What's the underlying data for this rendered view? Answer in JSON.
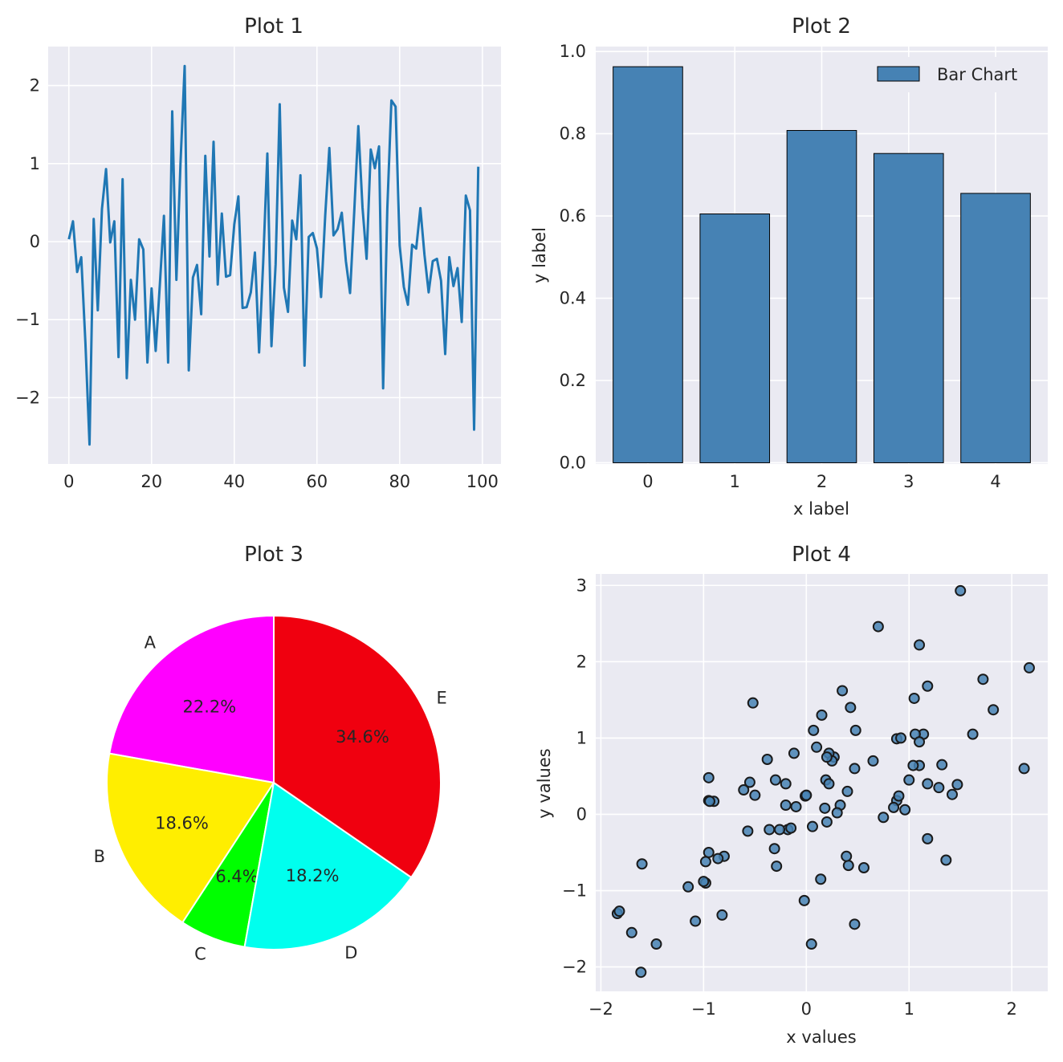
{
  "chart_data": [
    {
      "type": "line",
      "title": "Plot 1",
      "xlabel": "",
      "ylabel": "",
      "xlim": [
        -5,
        104.5
      ],
      "ylim": [
        -2.85,
        2.5
      ],
      "xticks": [
        0,
        20,
        40,
        60,
        80,
        100
      ],
      "yticks": [
        -2,
        -1,
        0,
        1,
        2
      ],
      "grid": true,
      "color": "#1f77b4",
      "series": [
        {
          "x": [
            0,
            1,
            2,
            3,
            4,
            5,
            6,
            7,
            8,
            9,
            10,
            11,
            12,
            13,
            14,
            15,
            16,
            17,
            18,
            19,
            20,
            21,
            22,
            23,
            24,
            25,
            26,
            27,
            28,
            29,
            30,
            31,
            32,
            33,
            34,
            35,
            36,
            37,
            38,
            39,
            40,
            41,
            42,
            43,
            44,
            45,
            46,
            47,
            48,
            49,
            50,
            51,
            52,
            53,
            54,
            55,
            56,
            57,
            58,
            59,
            60,
            61,
            62,
            63,
            64,
            65,
            66,
            67,
            68,
            69,
            70,
            71,
            72,
            73,
            74,
            75,
            76,
            77,
            78,
            79,
            80,
            81,
            82,
            83,
            84,
            85,
            86,
            87,
            88,
            89,
            90,
            91,
            92,
            93,
            94,
            95,
            96,
            97,
            98,
            99
          ],
          "values": [
            0.03,
            0.26,
            -0.39,
            -0.2,
            -1.3,
            -2.6,
            0.29,
            -0.88,
            0.42,
            0.93,
            -0.01,
            0.26,
            -1.48,
            0.8,
            -1.75,
            -0.49,
            -1.0,
            0.03,
            -0.1,
            -1.55,
            -0.6,
            -1.4,
            -0.55,
            0.33,
            -1.55,
            1.67,
            -0.49,
            1.0,
            2.25,
            -1.65,
            -0.46,
            -0.3,
            -0.93,
            1.1,
            -0.19,
            1.28,
            -0.55,
            0.36,
            -0.45,
            -0.43,
            0.22,
            0.58,
            -0.85,
            -0.84,
            -0.65,
            -0.14,
            -1.42,
            -0.27,
            1.13,
            -1.34,
            -0.29,
            1.76,
            -0.59,
            -0.9,
            0.27,
            0.03,
            0.85,
            -1.59,
            0.06,
            0.11,
            -0.09,
            -0.71,
            0.34,
            1.2,
            0.08,
            0.16,
            0.37,
            -0.25,
            -0.66,
            0.38,
            1.48,
            0.44,
            -0.22,
            1.18,
            0.94,
            1.22,
            -1.88,
            0.42,
            1.81,
            1.73,
            -0.05,
            -0.58,
            -0.81,
            -0.04,
            -0.09,
            0.43,
            -0.17,
            -0.65,
            -0.25,
            -0.22,
            -0.5,
            -1.44,
            -0.2,
            -0.57,
            -0.34,
            -1.03,
            0.59,
            0.4,
            -2.41,
            0.96
          ]
        }
      ]
    },
    {
      "type": "bar",
      "title": "Plot 2",
      "xlabel": "x label",
      "ylabel": "y label",
      "categories": [
        "0",
        "1",
        "2",
        "3",
        "4"
      ],
      "series": [
        {
          "name": "Bar Chart",
          "values": [
            0.963,
            0.605,
            0.808,
            0.752,
            0.655
          ]
        }
      ],
      "ylim": [
        0,
        1.0
      ],
      "yticks": [
        0.0,
        0.2,
        0.4,
        0.6,
        0.8,
        1.0
      ],
      "ytick_labels": [
        "0.0",
        "0.2",
        "0.4",
        "0.6",
        "0.8",
        "1.0"
      ],
      "grid": true,
      "legend": "top-right",
      "color": "#4682b4"
    },
    {
      "type": "pie",
      "title": "Plot 3",
      "labels": [
        "A",
        "B",
        "C",
        "D",
        "E"
      ],
      "values": [
        22.2,
        18.6,
        6.4,
        18.2,
        34.6
      ],
      "pct_labels": [
        "22.2%",
        "18.6%",
        "6.4%",
        "18.2%",
        "34.6%"
      ],
      "colors": [
        "#ff00ff",
        "#ffee00",
        "#00ff00",
        "#00ffee",
        "#f0000f"
      ],
      "startangle": 90,
      "counterclock": true
    },
    {
      "type": "scatter",
      "title": "Plot 4",
      "xlabel": "x values",
      "ylabel": "y values",
      "xlim": [
        -2.05,
        2.35
      ],
      "ylim": [
        -2.32,
        3.15
      ],
      "xticks": [
        -2,
        -1,
        0,
        1,
        2
      ],
      "yticks": [
        -2,
        -1,
        0,
        1,
        2,
        3
      ],
      "grid": true,
      "color": "#4682b4",
      "series": [
        {
          "x": [
            1.5,
            0.7,
            1.1,
            2.17,
            1.72,
            1.18,
            1.82,
            1.05,
            0.35,
            0.15,
            0.43,
            0.07,
            0.48,
            0.88,
            1.14,
            1.62,
            0.27,
            1.32,
            -0.52,
            0.22,
            0.25,
            0.65,
            0.92,
            1.06,
            1.1,
            0.1,
            -0.12,
            -0.38,
            0.2,
            -0.1,
            -0.3,
            -0.55,
            -0.95,
            -0.2,
            0.19,
            0.22,
            0.47,
            1.0,
            1.18,
            1.29,
            1.47,
            1.42,
            2.12,
            -0.61,
            -0.5,
            -0.01,
            0.4,
            0.33,
            0.3,
            0.0,
            0.18,
            -0.9,
            -0.95,
            -0.2,
            0.88,
            0.96,
            0.75,
            0.85,
            0.06,
            0.9,
            1.18,
            0.41,
            -0.57,
            -0.8,
            0.2,
            -0.18,
            -0.31,
            -0.95,
            -0.98,
            -0.36,
            -0.86,
            -1.6,
            -1.46,
            -0.98,
            0.56,
            0.39,
            -1.15,
            0.14,
            1.36,
            -1.84,
            -1.82,
            -1.0,
            -1.08,
            -0.82,
            -1.7,
            -0.02,
            0.05,
            -1.61,
            1.1,
            1.04,
            -0.29,
            -0.94,
            0.47,
            -0.26,
            -0.15
          ],
          "values": [
            2.93,
            2.46,
            2.22,
            1.92,
            1.77,
            1.68,
            1.37,
            1.52,
            1.62,
            1.3,
            1.4,
            1.1,
            1.1,
            0.99,
            1.05,
            1.05,
            0.75,
            0.65,
            1.46,
            0.8,
            0.7,
            0.7,
            1.0,
            1.05,
            0.95,
            0.88,
            0.8,
            0.72,
            0.75,
            0.1,
            0.45,
            0.42,
            0.48,
            0.4,
            0.45,
            0.4,
            0.6,
            0.45,
            0.4,
            0.35,
            0.39,
            0.26,
            0.6,
            0.32,
            0.25,
            0.24,
            0.3,
            0.12,
            0.02,
            0.25,
            0.08,
            0.17,
            0.18,
            0.12,
            0.18,
            0.06,
            -0.04,
            0.09,
            -0.16,
            0.24,
            -0.32,
            -0.67,
            -0.22,
            -0.55,
            -0.1,
            -0.2,
            -0.45,
            -0.5,
            -0.62,
            -0.2,
            -0.58,
            -0.65,
            -1.7,
            -0.9,
            -0.7,
            -0.55,
            -0.95,
            -0.85,
            -0.6,
            -1.3,
            -1.27,
            -0.88,
            -1.4,
            -1.32,
            -1.55,
            -1.13,
            -1.7,
            -2.07,
            0.64,
            0.64,
            -0.68,
            0.17,
            -1.44,
            -0.2,
            -0.18
          ]
        }
      ]
    }
  ]
}
